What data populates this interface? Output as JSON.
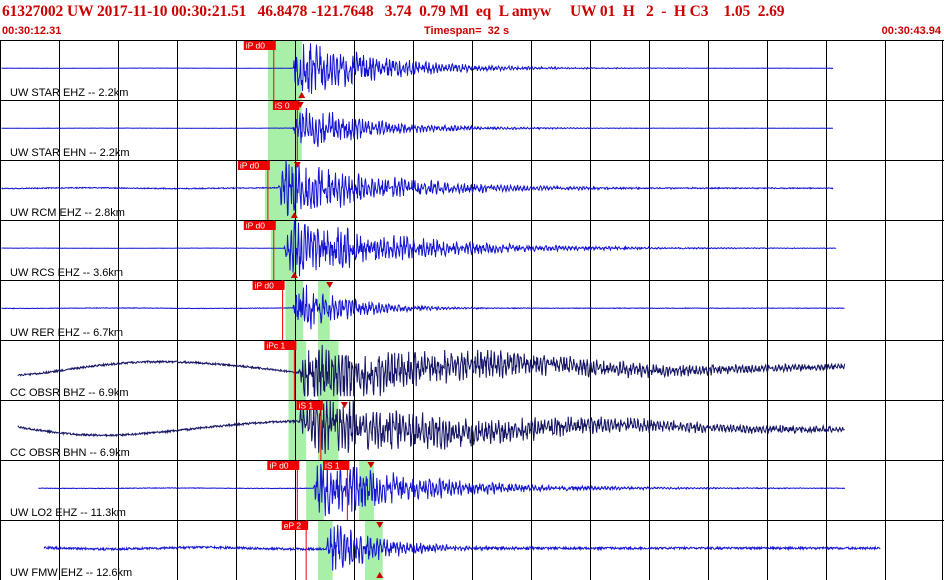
{
  "header": {
    "title_line": "61327002 UW 2017-11-10 00:30:21.51   46.8478 -121.7648   3.74  0.79 Ml  eq  L amyw     UW 01  H   2  -  H C3    1.05  2.69",
    "start_time": "00:30:12.31",
    "end_time": "00:30:43.94",
    "timespan": "Timespan=  32 s"
  },
  "colors": {
    "title": "#cc0000",
    "trace_blue": "#1414d2",
    "trace_navy": "#141464",
    "pick_flag": "#ee0000",
    "window_green": "#a8f0a8",
    "grid": "#000000",
    "marker": "#cc0000"
  },
  "chart_data": {
    "type": "line",
    "title": "61327002 UW 2017-11-10 00:30:21.51   46.8478 -121.7648   3.74  0.79 Ml  eq  L amyw     UW 01  H   2  -  H C3    1.05  2.69",
    "x_range": [
      "00:30:12.31",
      "00:30:43.94"
    ],
    "timespan_s": 32,
    "grid": "vertical",
    "traces": [
      {
        "label": "UW STAR EHZ -- 2.2km",
        "color": "blue",
        "start_s": 0.05,
        "end_s": 28.3,
        "onset_s": 9.95,
        "amp": 1.0,
        "noise": 0.03,
        "decay": 2.6,
        "picks": [
          {
            "label": "iP d0",
            "t": 9.3
          }
        ],
        "markers": [
          {
            "t": 10.25,
            "dir": "up"
          }
        ],
        "windows": [
          [
            9.1,
            10.25
          ]
        ]
      },
      {
        "label": "UW STAR EHN -- 2.2km",
        "color": "blue",
        "start_s": 0.05,
        "end_s": 28.3,
        "onset_s": 9.95,
        "amp": 0.75,
        "noise": 0.03,
        "decay": 2.4,
        "picks": [
          {
            "label": "iS 0",
            "t": 10.1
          }
        ],
        "markers": [
          {
            "t": 10.2,
            "dir": "down"
          }
        ],
        "windows": [
          [
            9.1,
            10.25
          ]
        ]
      },
      {
        "label": "UW RCM EHZ -- 2.8km",
        "color": "blue",
        "start_s": 0.05,
        "end_s": 28.3,
        "onset_s": 9.45,
        "amp": 1.0,
        "noise": 0.12,
        "decay": 3.2,
        "picks": [
          {
            "label": "iP d0",
            "t": 9.1
          }
        ],
        "markers": [
          {
            "t": 10.1,
            "dir": "down"
          },
          {
            "t": 10.0,
            "dir": "up"
          }
        ],
        "windows": [
          [
            9.0,
            10.1
          ]
        ]
      },
      {
        "label": "UW RCS EHZ -- 3.6km",
        "color": "blue",
        "start_s": 0.05,
        "end_s": 28.4,
        "onset_s": 9.65,
        "amp": 1.0,
        "noise": 0.03,
        "decay": 3.6,
        "picks": [
          {
            "label": "iP d0",
            "t": 9.3
          }
        ],
        "markers": [
          {
            "t": 10.0,
            "dir": "up"
          }
        ],
        "windows": [
          [
            9.2,
            10.1
          ]
        ]
      },
      {
        "label": "UW RER EHZ -- 6.7km",
        "color": "blue",
        "start_s": 0.05,
        "end_s": 28.7,
        "onset_s": 9.95,
        "amp": 0.95,
        "noise": 0.07,
        "decay": 1.6,
        "picks": [
          {
            "label": "iP d0",
            "t": 9.6
          }
        ],
        "markers": [
          {
            "t": 11.2,
            "dir": "down"
          }
        ],
        "windows": [
          [
            9.7,
            10.3
          ],
          [
            10.8,
            11.2
          ]
        ]
      },
      {
        "label": "CC OBSR BHZ -- 6.9km",
        "color": "navy",
        "start_s": 0.6,
        "end_s": 28.7,
        "onset_s": 10.15,
        "amp": 0.9,
        "noise": 0.25,
        "decay": 7.5,
        "picks": [
          {
            "label": "iPc 1",
            "t": 10.0
          }
        ],
        "markers": [],
        "windows": [
          [
            9.8,
            10.4
          ],
          [
            10.8,
            11.5
          ]
        ]
      },
      {
        "label": "CC OBSR BHN -- 6.9km",
        "color": "navy",
        "start_s": 0.6,
        "end_s": 28.7,
        "onset_s": 10.15,
        "amp": 0.9,
        "noise": 0.25,
        "decay": 7.5,
        "picks": [
          {
            "label": "iS 1",
            "t": 10.9
          }
        ],
        "markers": [
          {
            "t": 11.7,
            "dir": "down"
          }
        ],
        "windows": [
          [
            9.8,
            10.4
          ],
          [
            10.8,
            11.5
          ]
        ]
      },
      {
        "label": "UW LO2 EHZ -- 11.3km",
        "color": "blue",
        "start_s": 1.3,
        "end_s": 28.7,
        "onset_s": 10.65,
        "amp": 0.95,
        "noise": 0.07,
        "decay": 3.4,
        "picks": [
          {
            "label": "iP d0",
            "t": 10.1
          },
          {
            "label": "iS 1",
            "t": 11.8
          }
        ],
        "markers": [
          {
            "t": 12.6,
            "dir": "down"
          }
        ],
        "windows": [
          [
            10.4,
            11.0
          ],
          [
            12.2,
            12.7
          ]
        ]
      },
      {
        "label": "UW FMW EHZ -- 12.6km",
        "color": "blue",
        "start_s": 1.5,
        "end_s": 29.9,
        "onset_s": 11.05,
        "amp": 0.85,
        "noise": 0.28,
        "decay": 1.8,
        "picks": [
          {
            "label": "eP 2",
            "t": 10.4
          }
        ],
        "markers": [
          {
            "t": 12.9,
            "dir": "down"
          },
          {
            "t": 12.9,
            "dir": "up"
          }
        ],
        "windows": [
          [
            10.8,
            11.3
          ],
          [
            12.4,
            13.0
          ]
        ]
      }
    ]
  }
}
